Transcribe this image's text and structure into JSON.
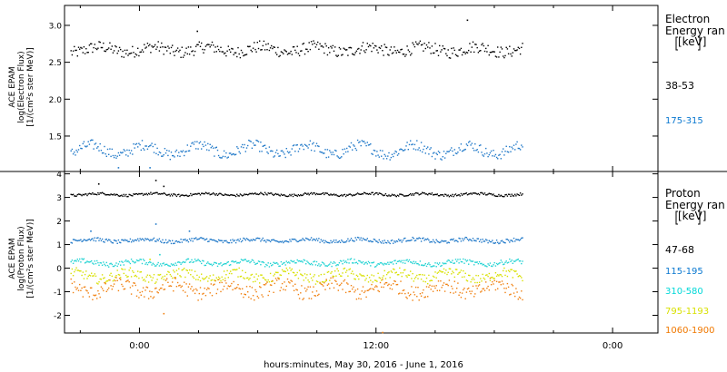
{
  "x_axis": {
    "label": "hours:minutes, May 30, 2016 - June  1, 2016",
    "ticks": [
      {
        "hour": 0,
        "label": "0:00"
      },
      {
        "hour": 12,
        "label": "12:00"
      },
      {
        "hour": 24,
        "label": "0:00"
      }
    ],
    "range_hours": [
      -3.8,
      26.3
    ]
  },
  "chart_data": [
    {
      "type": "scatter",
      "ylabel": [
        "ACE EPAM",
        "log(Electron Flux)",
        "[1/(cm²s ster MeV)]"
      ],
      "ylim": [
        1.02,
        3.27
      ],
      "yticks": [
        1.5,
        2.0,
        2.5,
        3.0
      ],
      "ytick_labels": [
        "1.5",
        "2.0",
        "2.5",
        "3.0"
      ],
      "legend_title": [
        "Electron",
        "Energy ran",
        "[keV]"
      ],
      "series": [
        {
          "name": "38-53",
          "color": "#000000",
          "legend_color": "#000000",
          "base": 2.68,
          "wave": 0.04,
          "scatter": 0.08,
          "spikes": [
            [
              2.9,
              2.93
            ],
            [
              16.6,
              3.08
            ]
          ]
        },
        {
          "name": "175-315",
          "color": "#1f78c8",
          "legend_color": "#0a78d0",
          "base": 1.32,
          "wave": 0.07,
          "scatter": 0.07,
          "spikes": [
            [
              -1.1,
              1.08
            ],
            [
              0.5,
              1.08
            ]
          ]
        }
      ],
      "x_range_hours": [
        -3.5,
        19.4
      ]
    },
    {
      "type": "scatter",
      "ylabel": [
        "ACE EPAM",
        "log(Proton Flux)",
        "[1/(cm²s ster MeV)]"
      ],
      "ylim": [
        -2.75,
        4.1
      ],
      "yticks": [
        -2,
        -1,
        0,
        1,
        2,
        3,
        4
      ],
      "ytick_labels": [
        "-2",
        "-1",
        "0",
        "1",
        "2",
        "3",
        "4"
      ],
      "legend_title": [
        "Proton",
        "Energy ran",
        "[keV]"
      ],
      "series": [
        {
          "name": "47-68",
          "color": "#000000",
          "legend_color": "#000000",
          "base": 3.15,
          "wave": 0.04,
          "scatter": 0.05,
          "spikes": [
            [
              -2.1,
              3.6
            ],
            [
              0.8,
              3.75
            ],
            [
              1.2,
              3.5
            ]
          ]
        },
        {
          "name": "115-195",
          "color": "#1f78c8",
          "legend_color": "#0a78d0",
          "base": 1.2,
          "wave": 0.06,
          "scatter": 0.08,
          "spikes": [
            [
              -2.5,
              1.6
            ],
            [
              0.8,
              1.9
            ],
            [
              2.5,
              1.6
            ]
          ]
        },
        {
          "name": "310-580",
          "color": "#22d3d3",
          "legend_color": "#00d8d8",
          "base": 0.25,
          "wave": 0.08,
          "scatter": 0.1,
          "spikes": [
            [
              1.0,
              0.6
            ]
          ]
        },
        {
          "name": "795-1193",
          "color": "#d8e000",
          "legend_color": "#d8e000",
          "base": -0.3,
          "wave": 0.15,
          "scatter": 0.2,
          "spikes": [
            [
              0.5,
              0.4
            ]
          ]
        },
        {
          "name": "1060-1900",
          "color": "#f08010",
          "legend_color": "#f07800",
          "base": -0.85,
          "wave": 0.2,
          "scatter": 0.3,
          "spikes": [
            [
              1.2,
              -1.9
            ],
            [
              12.3,
              -2.7
            ]
          ]
        }
      ],
      "x_range_hours": [
        -3.5,
        19.4
      ]
    }
  ]
}
